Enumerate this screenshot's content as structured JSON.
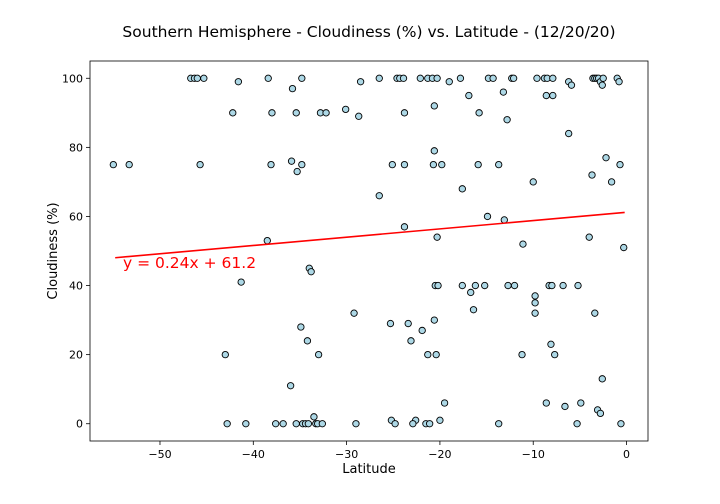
{
  "chart_data": {
    "type": "scatter",
    "title": "Southern Hemisphere - Cloudiness (%) vs. Latitude - (12/20/20)",
    "xlabel": "Latitude",
    "ylabel": "Cloudiness (%)",
    "xlim": [
      -57.5,
      2.3
    ],
    "ylim": [
      -5,
      105
    ],
    "xticks": [
      -50,
      -40,
      -30,
      -20,
      -10,
      0
    ],
    "xtick_labels": [
      "−50",
      "−40",
      "−30",
      "−20",
      "−10",
      "0"
    ],
    "yticks": [
      0,
      20,
      40,
      60,
      80,
      100
    ],
    "ytick_labels": [
      "0",
      "20",
      "40",
      "60",
      "80",
      "100"
    ],
    "grid": false,
    "marker_color": "#add8e6",
    "marker_edge_color": "#000000",
    "regression": {
      "equation": "y = 0.24x + 61.2",
      "slope": 0.24,
      "intercept": 61.2,
      "x_range": [
        -54.8,
        -0.2
      ],
      "color": "#ff0000"
    },
    "points": [
      [
        -55,
        75
      ],
      [
        -53.3,
        75
      ],
      [
        -46.7,
        100
      ],
      [
        -46.3,
        100
      ],
      [
        -46,
        100
      ],
      [
        -45.3,
        100
      ],
      [
        -45.7,
        75
      ],
      [
        -42.2,
        90
      ],
      [
        -41.6,
        99
      ],
      [
        -41.3,
        41
      ],
      [
        -43,
        20
      ],
      [
        -42.8,
        0
      ],
      [
        -40.8,
        0
      ],
      [
        -38.4,
        100
      ],
      [
        -38,
        90
      ],
      [
        -38.5,
        53
      ],
      [
        -38.1,
        75
      ],
      [
        -37.6,
        0
      ],
      [
        -36.8,
        0
      ],
      [
        -35.8,
        97
      ],
      [
        -35.9,
        76
      ],
      [
        -35.4,
        90
      ],
      [
        -35.3,
        73
      ],
      [
        -34.8,
        100
      ],
      [
        -34.8,
        75
      ],
      [
        -34.9,
        28
      ],
      [
        -34.2,
        24
      ],
      [
        -36,
        11
      ],
      [
        -35.4,
        0
      ],
      [
        -34.7,
        0
      ],
      [
        -34.4,
        0
      ],
      [
        -34.1,
        0
      ],
      [
        -34,
        45
      ],
      [
        -33.8,
        44
      ],
      [
        -33.5,
        2
      ],
      [
        -33.3,
        0
      ],
      [
        -33.1,
        0
      ],
      [
        -32.6,
        0
      ],
      [
        -33,
        20
      ],
      [
        -32.8,
        90
      ],
      [
        -32.2,
        90
      ],
      [
        -30.1,
        91
      ],
      [
        -28.7,
        89
      ],
      [
        -29.2,
        32
      ],
      [
        -29,
        0
      ],
      [
        -28.5,
        99
      ],
      [
        -26.5,
        100
      ],
      [
        -26.5,
        66
      ],
      [
        -25.3,
        29
      ],
      [
        -25.1,
        75
      ],
      [
        -25.2,
        1
      ],
      [
        -24.8,
        0
      ],
      [
        -24.6,
        100
      ],
      [
        -24.3,
        100
      ],
      [
        -23.9,
        100
      ],
      [
        -23.8,
        90
      ],
      [
        -23.8,
        75
      ],
      [
        -23.8,
        57
      ],
      [
        -23.4,
        29
      ],
      [
        -23.1,
        24
      ],
      [
        -22.6,
        1
      ],
      [
        -22.9,
        0
      ],
      [
        -22.1,
        100
      ],
      [
        -21.9,
        27
      ],
      [
        -21.5,
        0
      ],
      [
        -21.1,
        0
      ],
      [
        -21.3,
        100
      ],
      [
        -20.8,
        100
      ],
      [
        -21.3,
        20
      ],
      [
        -20.7,
        75
      ],
      [
        -20.6,
        79
      ],
      [
        -20.6,
        92
      ],
      [
        -20.3,
        100
      ],
      [
        -20.5,
        40
      ],
      [
        -20.2,
        40
      ],
      [
        -20.3,
        54
      ],
      [
        -20.6,
        30
      ],
      [
        -20.4,
        20
      ],
      [
        -20,
        1
      ],
      [
        -19.8,
        75
      ],
      [
        -19.5,
        6
      ],
      [
        -19,
        99
      ],
      [
        -17.8,
        100
      ],
      [
        -17.6,
        68
      ],
      [
        -17.6,
        40
      ],
      [
        -16.9,
        95
      ],
      [
        -16.7,
        38
      ],
      [
        -16.4,
        33
      ],
      [
        -16.2,
        40
      ],
      [
        -15.8,
        90
      ],
      [
        -15.9,
        75
      ],
      [
        -15.2,
        40
      ],
      [
        -14.8,
        100
      ],
      [
        -14.9,
        60
      ],
      [
        -14.3,
        100
      ],
      [
        -13.7,
        75
      ],
      [
        -13.7,
        0
      ],
      [
        -13.2,
        96
      ],
      [
        -13.1,
        59
      ],
      [
        -12.8,
        88
      ],
      [
        -12.7,
        40
      ],
      [
        -12.3,
        100
      ],
      [
        -12.1,
        100
      ],
      [
        -12,
        40
      ],
      [
        -11.2,
        20
      ],
      [
        -11.1,
        52
      ],
      [
        -10,
        70
      ],
      [
        -9.6,
        100
      ],
      [
        -9.8,
        37
      ],
      [
        -9.8,
        35
      ],
      [
        -9.8,
        32
      ],
      [
        -8.8,
        100
      ],
      [
        -8.6,
        95
      ],
      [
        -8.5,
        100
      ],
      [
        -8.6,
        6
      ],
      [
        -8.3,
        40
      ],
      [
        -8.1,
        23
      ],
      [
        -8,
        40
      ],
      [
        -7.9,
        100
      ],
      [
        -7.9,
        95
      ],
      [
        -7.7,
        20
      ],
      [
        -6.8,
        40
      ],
      [
        -6.6,
        5
      ],
      [
        -6.2,
        99
      ],
      [
        -6.2,
        84
      ],
      [
        -5.9,
        98
      ],
      [
        -5.2,
        40
      ],
      [
        -5.3,
        0
      ],
      [
        -4.9,
        6
      ],
      [
        -4,
        54
      ],
      [
        -3.7,
        72
      ],
      [
        -3.6,
        100
      ],
      [
        -3.4,
        32
      ],
      [
        -3.4,
        100
      ],
      [
        -3.2,
        100
      ],
      [
        -3.1,
        4
      ],
      [
        -3,
        100
      ],
      [
        -2.8,
        3
      ],
      [
        -2.8,
        99
      ],
      [
        -2.6,
        98
      ],
      [
        -2.5,
        100
      ],
      [
        -2.6,
        13
      ],
      [
        -2.2,
        77
      ],
      [
        -1.6,
        70
      ],
      [
        -1,
        100
      ],
      [
        -0.8,
        99
      ],
      [
        -0.7,
        75
      ],
      [
        -0.6,
        0
      ],
      [
        -0.3,
        51
      ]
    ]
  }
}
